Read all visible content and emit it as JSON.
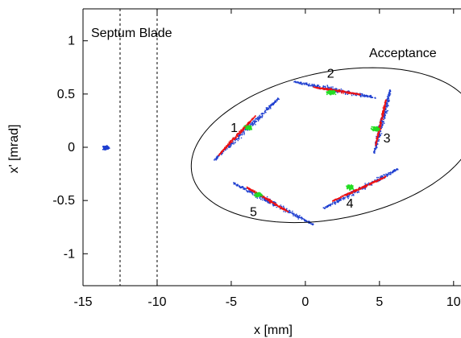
{
  "chart_data": {
    "type": "scatter",
    "title": "",
    "xlabel": "x [mm]",
    "ylabel": "x' [mrad]",
    "xlim": [
      -15,
      10.5
    ],
    "ylim": [
      -1.3,
      1.3
    ],
    "grid": false,
    "x_ticks": [
      {
        "value": -15,
        "label": "-15"
      },
      {
        "value": -10,
        "label": "-10"
      },
      {
        "value": -5,
        "label": "-5"
      },
      {
        "value": 0,
        "label": "0"
      },
      {
        "value": 5,
        "label": "5"
      },
      {
        "value": 10,
        "label": "10"
      }
    ],
    "y_ticks": [
      {
        "value": 1,
        "label": "1"
      },
      {
        "value": 0.5,
        "label": "0.5"
      },
      {
        "value": 0,
        "label": "0"
      },
      {
        "value": -0.5,
        "label": "-0.5"
      },
      {
        "value": -1,
        "label": "-1"
      }
    ],
    "septum": {
      "label": "Septum Blade",
      "x_positions": [
        -12.5,
        -10
      ]
    },
    "acceptance": {
      "label": "Acceptance",
      "center": [
        1.9,
        0.02
      ],
      "semi_axes": [
        9.6,
        0.7
      ],
      "rotation_deg": 20
    },
    "injected_beam": {
      "x": -13.5,
      "y": 0.0,
      "color": "#1f3fd0"
    },
    "colors": {
      "blue": "#1f3fd0",
      "red": "#ee1111",
      "green": "#22dd22"
    },
    "turns": [
      {
        "label": "1",
        "center": [
          -4.0,
          0.2
        ],
        "blue": [
          [
            -6.2,
            -0.12
          ],
          [
            -1.8,
            0.47
          ]
        ],
        "red": [
          [
            -5.9,
            -0.07
          ],
          [
            -3.4,
            0.3
          ]
        ],
        "green": [
          -3.9,
          0.19
        ],
        "label_pos": [
          -4.8,
          0.19
        ]
      },
      {
        "label": "2",
        "center": [
          1.7,
          0.52
        ],
        "blue": [
          [
            -0.8,
            0.62
          ],
          [
            4.7,
            0.47
          ]
        ],
        "red": [
          [
            0.5,
            0.57
          ],
          [
            3.7,
            0.5
          ]
        ],
        "green": [
          1.7,
          0.52
        ],
        "label_pos": [
          1.7,
          0.7
        ]
      },
      {
        "label": "3",
        "center": [
          4.9,
          0.2
        ],
        "blue": [
          [
            5.7,
            0.55
          ],
          [
            4.6,
            -0.05
          ]
        ],
        "red": [
          [
            5.4,
            0.45
          ],
          [
            4.7,
            0.02
          ]
        ],
        "green": [
          4.7,
          0.18
        ],
        "label_pos": [
          5.5,
          0.09
        ]
      },
      {
        "label": "4",
        "center": [
          3.0,
          -0.35
        ],
        "blue": [
          [
            1.2,
            -0.57
          ],
          [
            6.2,
            -0.2
          ]
        ],
        "red": [
          [
            1.8,
            -0.5
          ],
          [
            5.4,
            -0.27
          ]
        ],
        "green": [
          3.0,
          -0.37
        ],
        "label_pos": [
          3.0,
          -0.52
        ]
      },
      {
        "label": "5",
        "center": [
          -3.0,
          -0.45
        ],
        "blue": [
          [
            -4.9,
            -0.33
          ],
          [
            0.5,
            -0.72
          ]
        ],
        "red": [
          [
            -4.0,
            -0.37
          ],
          [
            -1.2,
            -0.6
          ]
        ],
        "green": [
          -3.2,
          -0.44
        ],
        "label_pos": [
          -3.5,
          -0.6
        ]
      }
    ]
  }
}
